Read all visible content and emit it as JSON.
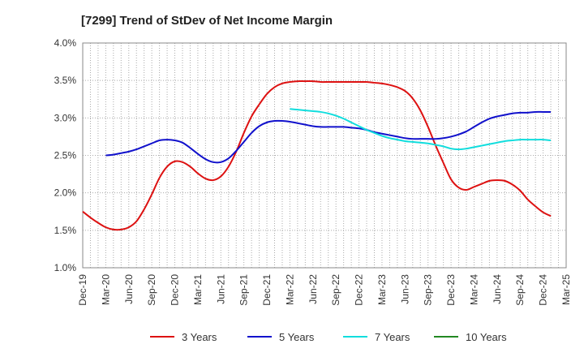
{
  "chart_data": {
    "type": "line",
    "title": "[7299]  Trend of StDev of Net Income Margin",
    "xlabel": "",
    "ylabel": "",
    "ylim": [
      1.0,
      4.0
    ],
    "yticks": [
      1.0,
      1.5,
      2.0,
      2.5,
      3.0,
      3.5,
      4.0
    ],
    "ytick_labels": [
      "1.0%",
      "1.5%",
      "2.0%",
      "2.5%",
      "3.0%",
      "3.5%",
      "4.0%"
    ],
    "x_range": [
      "2019-12",
      "2025-03"
    ],
    "xtick_labels": [
      "Dec-19",
      "Mar-20",
      "Jun-20",
      "Sep-20",
      "Dec-20",
      "Mar-21",
      "Jun-21",
      "Sep-21",
      "Dec-21",
      "Mar-22",
      "Jun-22",
      "Sep-22",
      "Dec-22",
      "Mar-23",
      "Jun-23",
      "Sep-23",
      "Dec-23",
      "Mar-24",
      "Jun-24",
      "Sep-24",
      "Dec-24",
      "Mar-25"
    ],
    "grid": true,
    "legend_position": "bottom",
    "series": [
      {
        "name": "3 Years",
        "color": "#dd1111",
        "points": [
          [
            "2019-12",
            1.75
          ],
          [
            "2020-01",
            1.67
          ],
          [
            "2020-02",
            1.6
          ],
          [
            "2020-03",
            1.54
          ],
          [
            "2020-04",
            1.51
          ],
          [
            "2020-05",
            1.51
          ],
          [
            "2020-06",
            1.54
          ],
          [
            "2020-07",
            1.62
          ],
          [
            "2020-08",
            1.78
          ],
          [
            "2020-09",
            1.98
          ],
          [
            "2020-10",
            2.2
          ],
          [
            "2020-11",
            2.35
          ],
          [
            "2020-12",
            2.42
          ],
          [
            "2021-01",
            2.41
          ],
          [
            "2021-02",
            2.35
          ],
          [
            "2021-03",
            2.26
          ],
          [
            "2021-04",
            2.19
          ],
          [
            "2021-05",
            2.17
          ],
          [
            "2021-06",
            2.22
          ],
          [
            "2021-07",
            2.35
          ],
          [
            "2021-08",
            2.55
          ],
          [
            "2021-09",
            2.8
          ],
          [
            "2021-10",
            3.02
          ],
          [
            "2021-11",
            3.18
          ],
          [
            "2021-12",
            3.32
          ],
          [
            "2022-01",
            3.41
          ],
          [
            "2022-02",
            3.46
          ],
          [
            "2022-03",
            3.48
          ],
          [
            "2022-04",
            3.49
          ],
          [
            "2022-05",
            3.49
          ],
          [
            "2022-06",
            3.49
          ],
          [
            "2022-07",
            3.48
          ],
          [
            "2022-08",
            3.48
          ],
          [
            "2022-09",
            3.48
          ],
          [
            "2022-10",
            3.48
          ],
          [
            "2022-11",
            3.48
          ],
          [
            "2022-12",
            3.48
          ],
          [
            "2023-01",
            3.48
          ],
          [
            "2023-02",
            3.47
          ],
          [
            "2023-03",
            3.46
          ],
          [
            "2023-04",
            3.44
          ],
          [
            "2023-05",
            3.41
          ],
          [
            "2023-06",
            3.36
          ],
          [
            "2023-07",
            3.26
          ],
          [
            "2023-08",
            3.1
          ],
          [
            "2023-09",
            2.88
          ],
          [
            "2023-10",
            2.63
          ],
          [
            "2023-11",
            2.4
          ],
          [
            "2023-12",
            2.18
          ],
          [
            "2024-01",
            2.07
          ],
          [
            "2024-02",
            2.04
          ],
          [
            "2024-03",
            2.08
          ],
          [
            "2024-04",
            2.12
          ],
          [
            "2024-05",
            2.16
          ],
          [
            "2024-06",
            2.17
          ],
          [
            "2024-07",
            2.16
          ],
          [
            "2024-08",
            2.11
          ],
          [
            "2024-09",
            2.03
          ],
          [
            "2024-10",
            1.91
          ],
          [
            "2024-11",
            1.82
          ],
          [
            "2024-12",
            1.74
          ],
          [
            "2025-01",
            1.69
          ]
        ]
      },
      {
        "name": "5 Years",
        "color": "#1111cc",
        "points": [
          [
            "2020-03",
            2.5
          ],
          [
            "2020-04",
            2.51
          ],
          [
            "2020-05",
            2.53
          ],
          [
            "2020-06",
            2.55
          ],
          [
            "2020-07",
            2.58
          ],
          [
            "2020-08",
            2.62
          ],
          [
            "2020-09",
            2.66
          ],
          [
            "2020-10",
            2.7
          ],
          [
            "2020-11",
            2.71
          ],
          [
            "2020-12",
            2.7
          ],
          [
            "2021-01",
            2.67
          ],
          [
            "2021-02",
            2.6
          ],
          [
            "2021-03",
            2.52
          ],
          [
            "2021-04",
            2.45
          ],
          [
            "2021-05",
            2.41
          ],
          [
            "2021-06",
            2.41
          ],
          [
            "2021-07",
            2.46
          ],
          [
            "2021-08",
            2.56
          ],
          [
            "2021-09",
            2.68
          ],
          [
            "2021-10",
            2.8
          ],
          [
            "2021-11",
            2.89
          ],
          [
            "2021-12",
            2.94
          ],
          [
            "2022-01",
            2.96
          ],
          [
            "2022-02",
            2.96
          ],
          [
            "2022-03",
            2.95
          ],
          [
            "2022-04",
            2.93
          ],
          [
            "2022-05",
            2.91
          ],
          [
            "2022-06",
            2.89
          ],
          [
            "2022-07",
            2.88
          ],
          [
            "2022-08",
            2.88
          ],
          [
            "2022-09",
            2.88
          ],
          [
            "2022-10",
            2.88
          ],
          [
            "2022-11",
            2.87
          ],
          [
            "2022-12",
            2.86
          ],
          [
            "2023-01",
            2.84
          ],
          [
            "2023-02",
            2.81
          ],
          [
            "2023-03",
            2.79
          ],
          [
            "2023-04",
            2.77
          ],
          [
            "2023-05",
            2.75
          ],
          [
            "2023-06",
            2.73
          ],
          [
            "2023-07",
            2.72
          ],
          [
            "2023-08",
            2.72
          ],
          [
            "2023-09",
            2.72
          ],
          [
            "2023-10",
            2.72
          ],
          [
            "2023-11",
            2.73
          ],
          [
            "2023-12",
            2.75
          ],
          [
            "2024-01",
            2.78
          ],
          [
            "2024-02",
            2.82
          ],
          [
            "2024-03",
            2.88
          ],
          [
            "2024-04",
            2.94
          ],
          [
            "2024-05",
            2.99
          ],
          [
            "2024-06",
            3.02
          ],
          [
            "2024-07",
            3.04
          ],
          [
            "2024-08",
            3.06
          ],
          [
            "2024-09",
            3.07
          ],
          [
            "2024-10",
            3.07
          ],
          [
            "2024-11",
            3.08
          ],
          [
            "2024-12",
            3.08
          ],
          [
            "2025-01",
            3.08
          ]
        ]
      },
      {
        "name": "7 Years",
        "color": "#11dddd",
        "points": [
          [
            "2022-03",
            3.12
          ],
          [
            "2022-04",
            3.11
          ],
          [
            "2022-05",
            3.1
          ],
          [
            "2022-06",
            3.09
          ],
          [
            "2022-07",
            3.08
          ],
          [
            "2022-08",
            3.06
          ],
          [
            "2022-09",
            3.03
          ],
          [
            "2022-10",
            2.99
          ],
          [
            "2022-11",
            2.94
          ],
          [
            "2022-12",
            2.89
          ],
          [
            "2023-01",
            2.84
          ],
          [
            "2023-02",
            2.8
          ],
          [
            "2023-03",
            2.76
          ],
          [
            "2023-04",
            2.73
          ],
          [
            "2023-05",
            2.71
          ],
          [
            "2023-06",
            2.69
          ],
          [
            "2023-07",
            2.68
          ],
          [
            "2023-08",
            2.67
          ],
          [
            "2023-09",
            2.66
          ],
          [
            "2023-10",
            2.64
          ],
          [
            "2023-11",
            2.62
          ],
          [
            "2023-12",
            2.59
          ],
          [
            "2024-01",
            2.58
          ],
          [
            "2024-02",
            2.59
          ],
          [
            "2024-03",
            2.61
          ],
          [
            "2024-04",
            2.63
          ],
          [
            "2024-05",
            2.65
          ],
          [
            "2024-06",
            2.67
          ],
          [
            "2024-07",
            2.69
          ],
          [
            "2024-08",
            2.7
          ],
          [
            "2024-09",
            2.71
          ],
          [
            "2024-10",
            2.71
          ],
          [
            "2024-11",
            2.71
          ],
          [
            "2024-12",
            2.71
          ],
          [
            "2025-01",
            2.7
          ]
        ]
      },
      {
        "name": "10 Years",
        "color": "#228822",
        "points": []
      }
    ]
  }
}
